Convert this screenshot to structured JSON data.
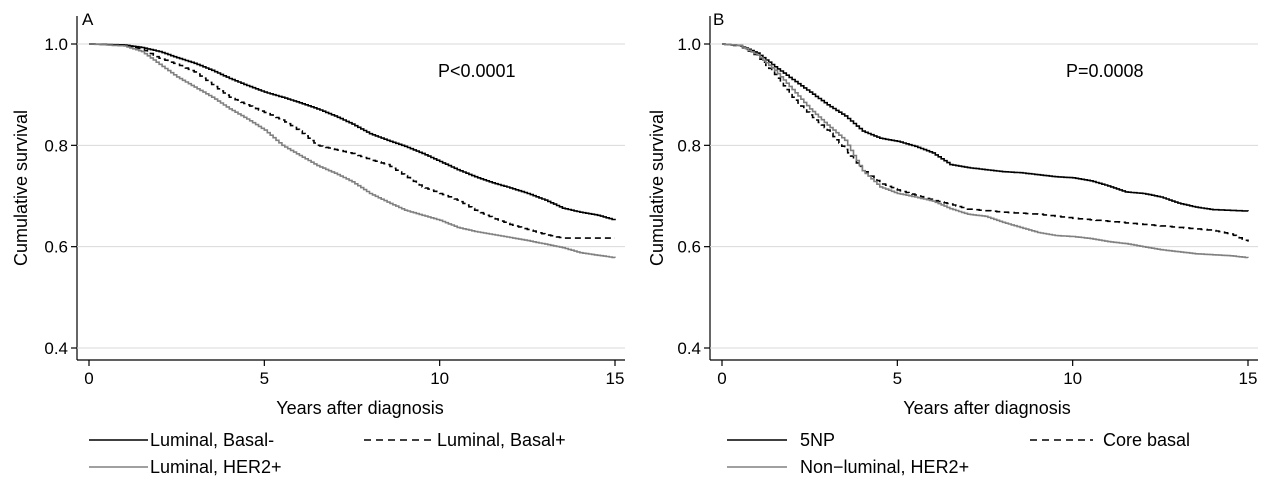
{
  "chart_data": [
    {
      "type": "line",
      "panel_label": "A",
      "annotation": "P<0.0001",
      "xlabel": "Years after diagnosis",
      "ylabel": "Cumulative survival",
      "xlim": [
        0,
        15
      ],
      "ylim": [
        0.4,
        1.0
      ],
      "xticks": [
        0,
        5,
        10,
        15
      ],
      "yticks": [
        0.4,
        0.6,
        0.8,
        1.0
      ],
      "xtick_labels": [
        "0",
        "5",
        "10",
        "15"
      ],
      "ytick_labels": [
        "0.4",
        "0.6",
        "0.8",
        "1.0"
      ],
      "grid": "horizontal",
      "legend_position": "bottom",
      "series": [
        {
          "name": "Luminal, Basal-",
          "color": "#000000",
          "style": "solid",
          "points": [
            [
              0,
              1.0
            ],
            [
              1,
              0.998
            ],
            [
              1.5,
              0.993
            ],
            [
              2,
              0.985
            ],
            [
              2.5,
              0.973
            ],
            [
              3,
              0.962
            ],
            [
              3.5,
              0.948
            ],
            [
              4,
              0.932
            ],
            [
              4.5,
              0.918
            ],
            [
              5,
              0.905
            ],
            [
              5.5,
              0.895
            ],
            [
              6,
              0.884
            ],
            [
              6.5,
              0.872
            ],
            [
              7,
              0.858
            ],
            [
              7.5,
              0.842
            ],
            [
              8,
              0.823
            ],
            [
              8.5,
              0.81
            ],
            [
              9,
              0.798
            ],
            [
              9.5,
              0.784
            ],
            [
              10,
              0.768
            ],
            [
              10.5,
              0.752
            ],
            [
              11,
              0.738
            ],
            [
              11.5,
              0.726
            ],
            [
              12,
              0.716
            ],
            [
              12.5,
              0.705
            ],
            [
              13,
              0.692
            ],
            [
              13.5,
              0.676
            ],
            [
              14,
              0.668
            ],
            [
              14.5,
              0.662
            ],
            [
              15,
              0.652
            ]
          ]
        },
        {
          "name": "Luminal, Basal+",
          "color": "#000000",
          "style": "dashed",
          "points": [
            [
              0,
              1.0
            ],
            [
              1,
              0.997
            ],
            [
              1.5,
              0.99
            ],
            [
              2,
              0.972
            ],
            [
              2.5,
              0.96
            ],
            [
              3,
              0.945
            ],
            [
              3.5,
              0.92
            ],
            [
              4,
              0.895
            ],
            [
              4.5,
              0.88
            ],
            [
              5,
              0.865
            ],
            [
              5.5,
              0.85
            ],
            [
              6,
              0.828
            ],
            [
              6.5,
              0.8
            ],
            [
              7,
              0.792
            ],
            [
              7.5,
              0.784
            ],
            [
              8,
              0.772
            ],
            [
              8.5,
              0.762
            ],
            [
              9,
              0.74
            ],
            [
              9.5,
              0.718
            ],
            [
              10,
              0.705
            ],
            [
              10.5,
              0.692
            ],
            [
              11,
              0.672
            ],
            [
              11.5,
              0.657
            ],
            [
              12,
              0.644
            ],
            [
              12.5,
              0.634
            ],
            [
              13,
              0.624
            ],
            [
              13.5,
              0.617
            ],
            [
              14,
              0.617
            ],
            [
              15,
              0.617
            ]
          ]
        },
        {
          "name": "Luminal, HER2+",
          "color": "#808080",
          "style": "solid",
          "points": [
            [
              0,
              1.0
            ],
            [
              1,
              0.996
            ],
            [
              1.5,
              0.985
            ],
            [
              2,
              0.96
            ],
            [
              2.5,
              0.935
            ],
            [
              3,
              0.915
            ],
            [
              3.5,
              0.895
            ],
            [
              4,
              0.872
            ],
            [
              4.5,
              0.852
            ],
            [
              5,
              0.83
            ],
            [
              5.5,
              0.8
            ],
            [
              6,
              0.78
            ],
            [
              6.5,
              0.76
            ],
            [
              7,
              0.745
            ],
            [
              7.5,
              0.728
            ],
            [
              8,
              0.705
            ],
            [
              8.5,
              0.688
            ],
            [
              9,
              0.672
            ],
            [
              9.5,
              0.662
            ],
            [
              10,
              0.652
            ],
            [
              10.5,
              0.638
            ],
            [
              11,
              0.63
            ],
            [
              11.5,
              0.624
            ],
            [
              12,
              0.618
            ],
            [
              12.5,
              0.612
            ],
            [
              13,
              0.605
            ],
            [
              13.5,
              0.598
            ],
            [
              14,
              0.588
            ],
            [
              14.5,
              0.583
            ],
            [
              15,
              0.578
            ]
          ]
        }
      ]
    },
    {
      "type": "line",
      "panel_label": "B",
      "annotation": "P=0.0008",
      "xlabel": "Years after diagnosis",
      "ylabel": "Cumulative survival",
      "xlim": [
        0,
        15
      ],
      "ylim": [
        0.4,
        1.0
      ],
      "xticks": [
        0,
        5,
        10,
        15
      ],
      "yticks": [
        0.4,
        0.6,
        0.8,
        1.0
      ],
      "xtick_labels": [
        "0",
        "5",
        "10",
        "15"
      ],
      "ytick_labels": [
        "0.4",
        "0.6",
        "0.8",
        "1.0"
      ],
      "grid": "horizontal",
      "legend_position": "bottom",
      "series": [
        {
          "name": "5NP",
          "color": "#000000",
          "style": "solid",
          "points": [
            [
              0,
              1.0
            ],
            [
              0.5,
              0.997
            ],
            [
              1,
              0.982
            ],
            [
              1.5,
              0.955
            ],
            [
              2,
              0.93
            ],
            [
              2.5,
              0.905
            ],
            [
              3,
              0.88
            ],
            [
              3.5,
              0.858
            ],
            [
              4,
              0.828
            ],
            [
              4.5,
              0.814
            ],
            [
              5,
              0.808
            ],
            [
              5.5,
              0.798
            ],
            [
              6,
              0.785
            ],
            [
              6.5,
              0.762
            ],
            [
              7,
              0.756
            ],
            [
              7.5,
              0.752
            ],
            [
              8,
              0.748
            ],
            [
              8.5,
              0.746
            ],
            [
              9,
              0.742
            ],
            [
              9.5,
              0.738
            ],
            [
              10,
              0.736
            ],
            [
              10.5,
              0.73
            ],
            [
              11,
              0.72
            ],
            [
              11.5,
              0.708
            ],
            [
              12,
              0.705
            ],
            [
              12.5,
              0.698
            ],
            [
              13,
              0.686
            ],
            [
              13.5,
              0.678
            ],
            [
              14,
              0.673
            ],
            [
              15,
              0.67
            ]
          ]
        },
        {
          "name": "Core basal",
          "color": "#000000",
          "style": "dashed",
          "points": [
            [
              0,
              1.0
            ],
            [
              0.5,
              0.996
            ],
            [
              1,
              0.976
            ],
            [
              1.5,
              0.94
            ],
            [
              2,
              0.895
            ],
            [
              2.5,
              0.86
            ],
            [
              3,
              0.83
            ],
            [
              3.5,
              0.792
            ],
            [
              4,
              0.752
            ],
            [
              4.5,
              0.726
            ],
            [
              5,
              0.712
            ],
            [
              5.5,
              0.702
            ],
            [
              6,
              0.692
            ],
            [
              6.5,
              0.684
            ],
            [
              7,
              0.674
            ],
            [
              8,
              0.668
            ],
            [
              9,
              0.664
            ],
            [
              10,
              0.656
            ],
            [
              11,
              0.65
            ],
            [
              12,
              0.644
            ],
            [
              13,
              0.638
            ],
            [
              14,
              0.632
            ],
            [
              14.5,
              0.625
            ],
            [
              15,
              0.61
            ]
          ]
        },
        {
          "name": "Non−luminal, HER2+",
          "color": "#808080",
          "style": "solid",
          "points": [
            [
              0,
              1.0
            ],
            [
              0.5,
              0.997
            ],
            [
              1,
              0.978
            ],
            [
              1.5,
              0.948
            ],
            [
              2,
              0.91
            ],
            [
              2.5,
              0.872
            ],
            [
              3,
              0.84
            ],
            [
              3.5,
              0.81
            ],
            [
              4,
              0.75
            ],
            [
              4.5,
              0.718
            ],
            [
              5,
              0.705
            ],
            [
              5.5,
              0.698
            ],
            [
              6,
              0.69
            ],
            [
              6.5,
              0.675
            ],
            [
              7,
              0.664
            ],
            [
              7.5,
              0.66
            ],
            [
              8,
              0.648
            ],
            [
              8.5,
              0.638
            ],
            [
              9,
              0.628
            ],
            [
              9.5,
              0.622
            ],
            [
              10,
              0.62
            ],
            [
              10.5,
              0.616
            ],
            [
              11,
              0.61
            ],
            [
              11.5,
              0.606
            ],
            [
              12,
              0.6
            ],
            [
              12.5,
              0.594
            ],
            [
              13,
              0.59
            ],
            [
              13.5,
              0.586
            ],
            [
              14,
              0.584
            ],
            [
              14.5,
              0.582
            ],
            [
              15,
              0.578
            ]
          ]
        }
      ]
    }
  ]
}
